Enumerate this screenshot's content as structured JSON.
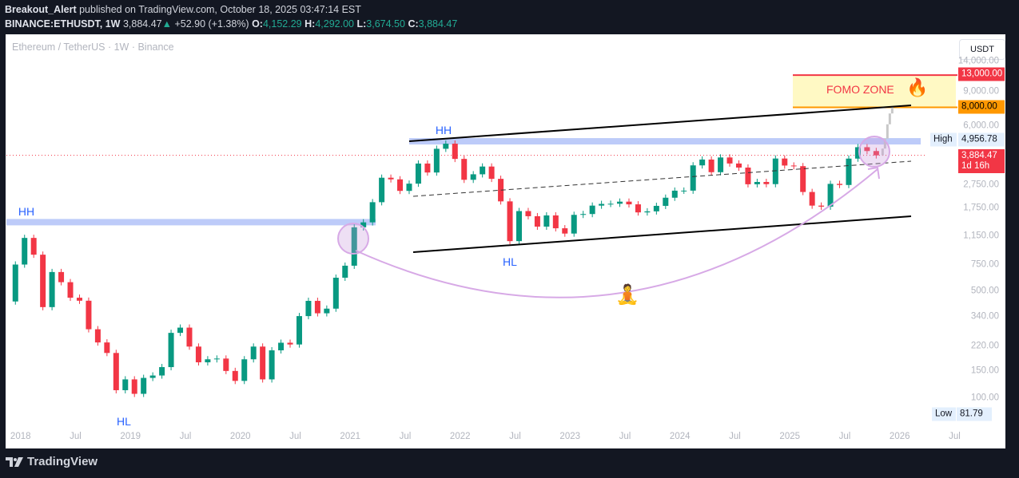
{
  "header": {
    "author": "Breakout_Alert",
    "published": "published on TradingView.com, October 18, 2025 03:47:14 EST",
    "symbol": "BINANCE:ETHUSDT, 1W",
    "last": "3,884.47",
    "change": "+52.90 (+1.38%)",
    "o_label": "O:",
    "o": "4,152.29",
    "h_label": "H:",
    "h": "4,292.00",
    "l_label": "L:",
    "l": "3,674.50",
    "c_label": "C:",
    "c": "3,884.47"
  },
  "chart_title": "Ethereum / TetherUS · 1W · Binance",
  "currency_button": "USDT",
  "price_badges": {
    "target_high": "13,000.00",
    "target_low": "8,000.00",
    "high_label": "High",
    "high": "4,956.78",
    "current": "3,884.47",
    "countdown": "1d 16h",
    "low_label": "Low",
    "low": "81.79"
  },
  "annotations": {
    "hh_2018": "HH",
    "hl_2018": "HL",
    "hh_2021": "HH",
    "hl_2022": "HL",
    "fomo_zone": "FOMO ZONE",
    "fire_icon": "🔥",
    "meditate_icon": "🧘"
  },
  "brand": "TradingView",
  "colors": {
    "up": "#089981",
    "down": "#f23645",
    "band": "#bdcbf9",
    "fomo_fill": "#fff9c4",
    "curve": "#d7a9e6",
    "projection": "#c8c8c8"
  },
  "chart_data": {
    "type": "candlestick",
    "interval": "1W (monthly approximation of closes)",
    "y_scale": "log",
    "ylim": [
      75,
      16000
    ],
    "y_ticks": [
      "14,000.00",
      "9,000.00",
      "6,000.00",
      "2,750.00",
      "1,750.00",
      "1,150.00",
      "750.00",
      "500.00",
      "340.00",
      "220.00",
      "150.00",
      "100.00"
    ],
    "y_tick_values": [
      14000,
      9000,
      6000,
      2750,
      1750,
      1150,
      750,
      500,
      340,
      220,
      150,
      100
    ],
    "x_ticks": [
      "2018",
      "Jul",
      "2019",
      "Jul",
      "2020",
      "Jul",
      "2021",
      "Jul",
      "2022",
      "Jul",
      "2023",
      "Jul",
      "2024",
      "Jul",
      "2025",
      "Jul",
      "2026",
      "Jul"
    ],
    "x_tick_dates": [
      "2018-01",
      "2018-07",
      "2019-01",
      "2019-07",
      "2020-01",
      "2020-07",
      "2021-01",
      "2021-07",
      "2022-01",
      "2022-07",
      "2023-01",
      "2023-07",
      "2024-01",
      "2024-07",
      "2025-01",
      "2025-07",
      "2026-01",
      "2026-07"
    ],
    "start": "2017-12",
    "start_open": 430,
    "closes": [
      750,
      1120,
      870,
      395,
      670,
      575,
      455,
      435,
      283,
      232,
      198,
      113,
      133,
      107,
      136,
      141,
      160,
      268,
      290,
      218,
      172,
      180,
      182,
      151,
      130,
      180,
      218,
      133,
      206,
      231,
      225,
      345,
      434,
      360,
      386,
      615,
      737,
      1314,
      1416,
      1918,
      2773,
      2706,
      2274,
      2536,
      3433,
      3000,
      4288,
      4631,
      3682,
      2688,
      2920,
      3282,
      2727,
      1942,
      1067,
      1678,
      1553,
      1328,
      1572,
      1295,
      1196,
      1585,
      1605,
      1822,
      1869,
      1874,
      1934,
      1857,
      1645,
      1671,
      1815,
      2052,
      2282,
      2283,
      3340,
      3647,
      3014,
      3762,
      3436,
      3231,
      2513,
      2602,
      2518,
      3703,
      3332,
      3300,
      2237,
      1822,
      1794,
      2528,
      2486,
      3698,
      4392,
      4145,
      3884
    ],
    "projection": [
      4300,
      5000,
      6200,
      7300,
      8000
    ],
    "levels": {
      "fomo_top": 13000,
      "fomo_bottom": 8000,
      "resistance_2018": 1420,
      "resistance_2021": 4800,
      "current": 3884.47
    }
  }
}
